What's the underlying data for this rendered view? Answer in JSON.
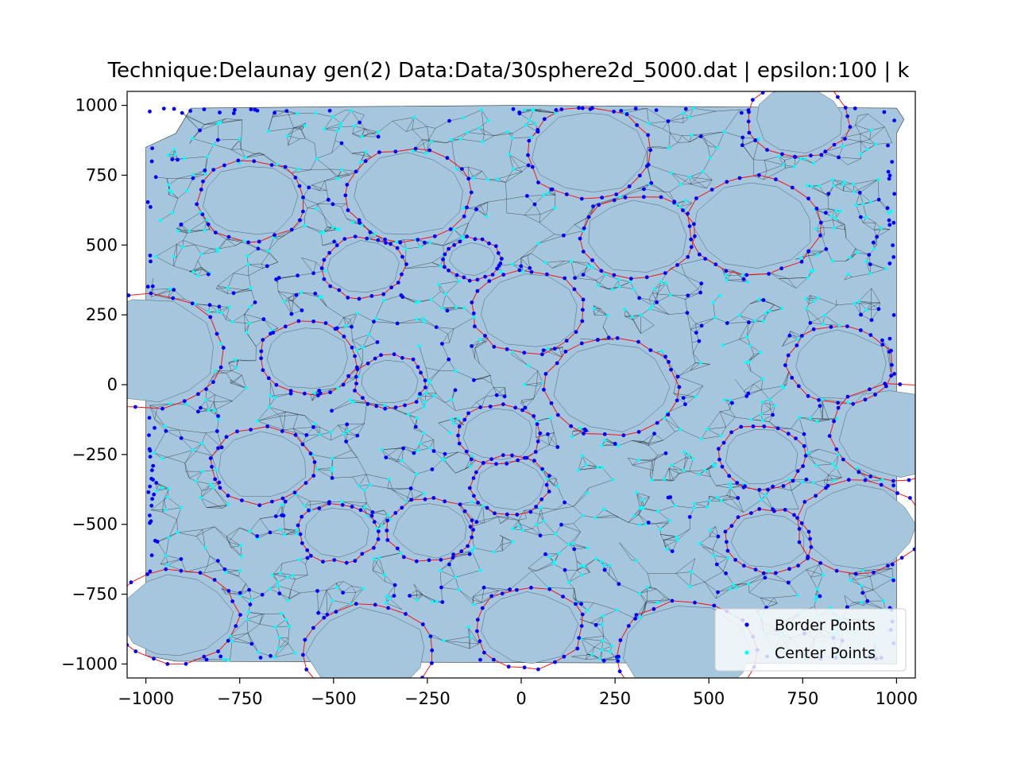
{
  "chart_data": {
    "type": "scatter",
    "title": "Technique:Delaunay  gen(2) Data:Data/30sphere2d_5000.dat | epsilon:100 | k",
    "xlabel": "",
    "ylabel": "",
    "xlim": [
      -1050,
      1050
    ],
    "ylim": [
      -1050,
      1050
    ],
    "xticks": [
      -1000,
      -750,
      -500,
      -250,
      0,
      250,
      500,
      750,
      1000
    ],
    "yticks": [
      -1000,
      -750,
      -500,
      -250,
      0,
      250,
      500,
      750,
      1000
    ],
    "xtick_labels": [
      "−1000",
      "−750",
      "−500",
      "−250",
      "0",
      "250",
      "500",
      "750",
      "1000"
    ],
    "ytick_labels": [
      "−1000",
      "−750",
      "−500",
      "−250",
      "0",
      "250",
      "500",
      "750",
      "1000"
    ],
    "grid": false,
    "legend_position": "bottom-right",
    "legend": [
      {
        "label": "Border Points",
        "color": "#0000ff"
      },
      {
        "label": "Center Points",
        "color": "#00ffff"
      }
    ],
    "hull_polygon": [
      [
        -1000,
        850
      ],
      [
        -920,
        900
      ],
      [
        -880,
        990
      ],
      [
        -500,
        995
      ],
      [
        0,
        1000
      ],
      [
        500,
        995
      ],
      [
        1000,
        990
      ],
      [
        1020,
        950
      ],
      [
        1000,
        900
      ],
      [
        1000,
        500
      ],
      [
        1000,
        -1000
      ],
      [
        -920,
        -990
      ],
      [
        -1000,
        -970
      ],
      [
        -1000,
        850
      ]
    ],
    "holes": [
      {
        "cx": -720,
        "cy": 660,
        "r": 130
      },
      {
        "cx": -300,
        "cy": 680,
        "r": 150
      },
      {
        "cx": 180,
        "cy": 830,
        "r": 150
      },
      {
        "cx": 740,
        "cy": 950,
        "r": 120
      },
      {
        "cx": -420,
        "cy": 420,
        "r": 95
      },
      {
        "cx": -130,
        "cy": 450,
        "r": 60
      },
      {
        "cx": 310,
        "cy": 530,
        "r": 135
      },
      {
        "cx": 620,
        "cy": 570,
        "r": 160
      },
      {
        "cx": 20,
        "cy": 260,
        "r": 135
      },
      {
        "cx": -1000,
        "cy": 120,
        "r": 190
      },
      {
        "cx": -570,
        "cy": 95,
        "r": 115
      },
      {
        "cx": -350,
        "cy": 10,
        "r": 80
      },
      {
        "cx": 240,
        "cy": -10,
        "r": 160
      },
      {
        "cx": 850,
        "cy": 70,
        "r": 125
      },
      {
        "cx": 1000,
        "cy": -170,
        "r": 160
      },
      {
        "cx": -60,
        "cy": -180,
        "r": 95
      },
      {
        "cx": -690,
        "cy": -290,
        "r": 120
      },
      {
        "cx": -30,
        "cy": -360,
        "r": 90
      },
      {
        "cx": 640,
        "cy": -260,
        "r": 100
      },
      {
        "cx": -490,
        "cy": -530,
        "r": 90
      },
      {
        "cx": -240,
        "cy": -520,
        "r": 100
      },
      {
        "cx": 660,
        "cy": -560,
        "r": 100
      },
      {
        "cx": 900,
        "cy": -510,
        "r": 150
      },
      {
        "cx": -920,
        "cy": -830,
        "r": 150
      },
      {
        "cx": -410,
        "cy": -960,
        "r": 160
      },
      {
        "cx": 20,
        "cy": -870,
        "r": 130
      },
      {
        "cx": 440,
        "cy": -960,
        "r": 170
      }
    ],
    "series": [
      {
        "name": "Border Points",
        "color": "#0000ff",
        "marker_radius": 2.4
      },
      {
        "name": "Center Points",
        "color": "#00ffff",
        "marker_radius": 2.0
      }
    ]
  }
}
